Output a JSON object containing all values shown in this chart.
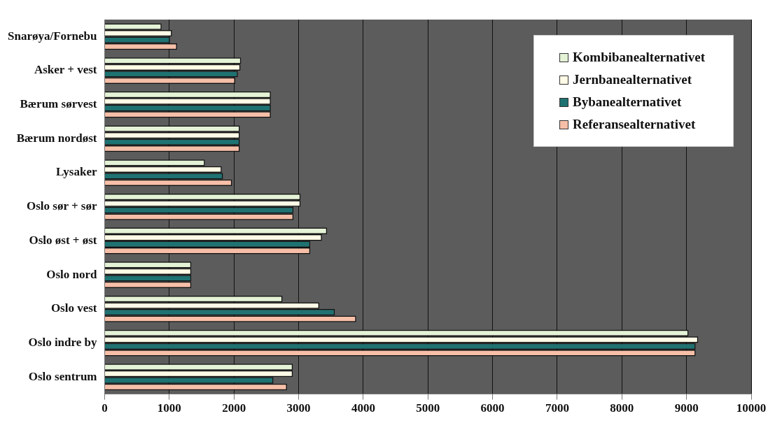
{
  "chart_data": {
    "type": "bar",
    "orientation": "horizontal",
    "categories": [
      "Snarøya/Fornebu",
      "Asker + vest",
      "Bærum sørvest",
      "Bærum nordøst",
      "Lysaker",
      "Oslo sør + sør",
      "Oslo øst + øst",
      "Oslo nord",
      "Oslo vest",
      "Oslo indre by",
      "Oslo sentrum"
    ],
    "series": [
      {
        "name": "Kombibanealternativet",
        "color": "#e4f2d6",
        "values": [
          880,
          2110,
          2570,
          2090,
          1550,
          3030,
          3440,
          1340,
          2750,
          9030,
          2910
        ]
      },
      {
        "name": "Jernbanealternativet",
        "color": "#fffbe6",
        "values": [
          1040,
          2100,
          2570,
          2090,
          1810,
          3030,
          3360,
          1340,
          3320,
          9180,
          2910
        ]
      },
      {
        "name": "Bybanealternativet",
        "color": "#1f7272",
        "values": [
          1010,
          2060,
          2570,
          2090,
          1830,
          2920,
          3180,
          1340,
          3560,
          9140,
          2610
        ]
      },
      {
        "name": "Referansealternativet",
        "color": "#f7bfa8",
        "values": [
          1120,
          2020,
          2570,
          2090,
          1970,
          2920,
          3180,
          1340,
          3890,
          9140,
          2820
        ]
      }
    ],
    "xlim": [
      0,
      10000
    ],
    "xticks": [
      0,
      1000,
      2000,
      3000,
      4000,
      5000,
      6000,
      7000,
      8000,
      9000,
      10000
    ],
    "grid": "x",
    "legend": "top right"
  }
}
